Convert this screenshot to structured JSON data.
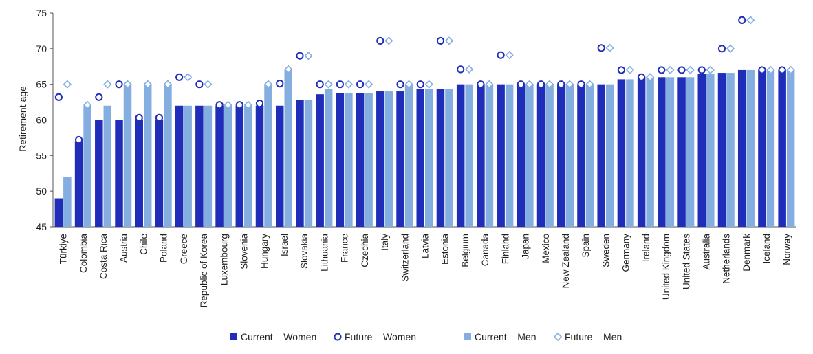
{
  "chart_data": {
    "type": "bar",
    "ylabel": "Retirement age",
    "ylim": [
      45,
      75
    ],
    "yticks": [
      45,
      50,
      55,
      60,
      65,
      70,
      75
    ],
    "grid": false,
    "legend_position": "bottom",
    "categories": [
      "Türkiye",
      "Colombia",
      "Costa Rica",
      "Austria",
      "Chile",
      "Poland",
      "Greece",
      "Republic of Korea",
      "Luxembourg",
      "Slovenia",
      "Hungary",
      "Israel",
      "Slovakia",
      "Lithuania",
      "France",
      "Czechia",
      "Italy",
      "Switzerland",
      "Latvia",
      "Estonia",
      "Belgium",
      "Canada",
      "Finland",
      "Japan",
      "Mexico",
      "New Zealand",
      "Spain",
      "Sweden",
      "Germany",
      "Ireland",
      "United Kingdom",
      "United States",
      "Australia",
      "Netherlands",
      "Denmark",
      "Iceland",
      "Norway"
    ],
    "series": [
      {
        "name": "Current – Women",
        "kind": "bar",
        "color": "#1f2db8",
        "values": [
          49,
          57,
          60,
          60,
          60,
          60,
          62,
          62,
          62,
          62,
          62,
          62,
          62.8,
          63.6,
          63.8,
          63.8,
          64,
          64,
          64.3,
          64.3,
          65,
          65,
          65,
          65,
          65,
          65,
          65,
          65,
          65.7,
          66,
          66,
          66,
          66.5,
          66.6,
          67,
          67,
          67
        ]
      },
      {
        "name": "Future – Women",
        "kind": "marker-circle",
        "color": "#1f2db8",
        "values": [
          63.2,
          57.2,
          63.2,
          65,
          60.3,
          60.3,
          66,
          65,
          62.1,
          62.1,
          62.3,
          65.1,
          69,
          65,
          65,
          65,
          71.1,
          65,
          65,
          71.1,
          67.1,
          65,
          69.1,
          65,
          65,
          65,
          65,
          70.1,
          67,
          66,
          67,
          67,
          67,
          70,
          74,
          67,
          67
        ]
      },
      {
        "name": "Current – Men",
        "kind": "bar",
        "color": "#84ade0",
        "values": [
          52,
          62,
          62,
          65,
          65,
          65,
          62,
          62,
          62,
          62,
          65,
          67,
          62.8,
          64.3,
          63.8,
          63.8,
          64,
          65,
          64.3,
          64.3,
          65,
          65,
          65,
          65,
          65,
          65,
          65,
          65,
          65.7,
          66,
          66,
          66,
          66.5,
          66.6,
          67,
          67,
          67
        ]
      },
      {
        "name": "Future – Men",
        "kind": "marker-diamond",
        "color": "#84ade0",
        "values": [
          65,
          62.1,
          65,
          65,
          65,
          65,
          66,
          65,
          62.1,
          62.1,
          65,
          67.1,
          69,
          65,
          65,
          65,
          71.1,
          65,
          65,
          71.1,
          67.1,
          65,
          69.1,
          65,
          65,
          65,
          65,
          70.1,
          67,
          66,
          67,
          67,
          67,
          70,
          74,
          67,
          67
        ]
      }
    ]
  }
}
